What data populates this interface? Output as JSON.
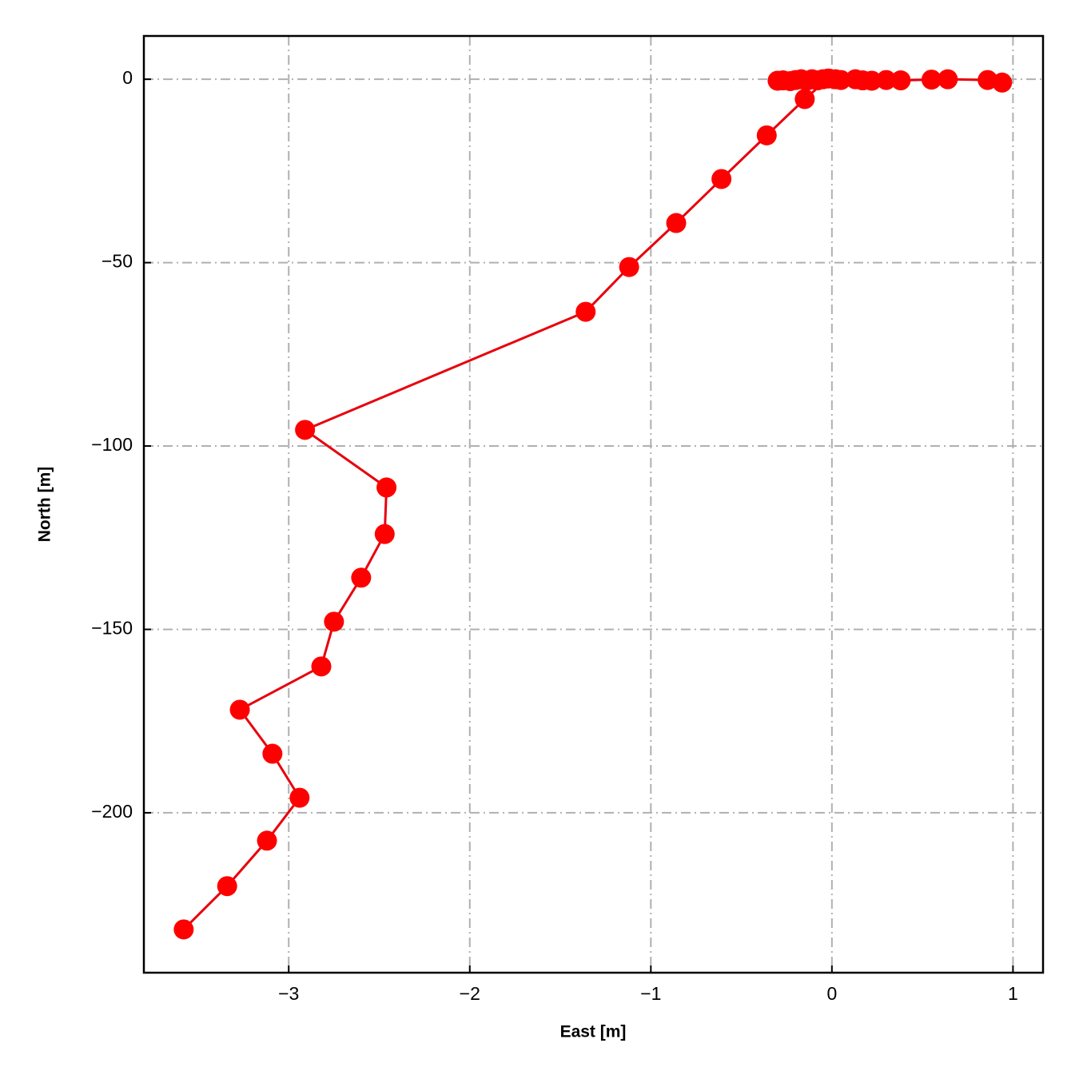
{
  "chart_data": {
    "type": "line",
    "x_label": "East [m]",
    "y_label": "North [m]",
    "x": [
      -3.58,
      -3.34,
      -3.12,
      -2.94,
      -3.09,
      -3.27,
      -2.82,
      -2.75,
      -2.6,
      -2.47,
      -2.46,
      -2.91,
      -1.36,
      -1.12,
      -0.86,
      -0.61,
      -0.36,
      -0.15,
      -0.02,
      -0.05,
      -0.08,
      -0.11,
      -0.14,
      -0.17,
      -0.2,
      -0.23,
      -0.27,
      -0.3,
      0.02,
      0.05,
      0.13,
      0.17,
      0.22,
      0.3,
      0.38,
      0.55,
      0.64,
      0.86,
      0.94
    ],
    "series": [
      {
        "color": "#ff0000",
        "line_color": "#e8000b",
        "values": [
          -231.8,
          -220,
          -207.6,
          -195.9,
          -183.9,
          -171.9,
          -160.1,
          -147.9,
          -135.9,
          -124,
          -111.3,
          -95.6,
          -63.4,
          -51.2,
          -39.2,
          -27.2,
          -15.3,
          -5.4,
          0.2,
          0,
          -0.3,
          0,
          -0.4,
          0,
          -0.2,
          -0.5,
          -0.3,
          -0.4,
          0,
          -0.2,
          0,
          -0.3,
          -0.4,
          -0.2,
          -0.3,
          -0.1,
          0,
          -0.2,
          -0.9
        ]
      }
    ],
    "xlim": [
      -3.8,
      1.166
    ],
    "ylim": [
      -243.6,
      11.8
    ],
    "xticks": [
      {
        "value": -3,
        "label": "−3"
      },
      {
        "value": -2,
        "label": "−2"
      },
      {
        "value": -1,
        "label": "−1"
      },
      0,
      1
    ],
    "yticks": [
      {
        "value": -200,
        "label": "−200"
      },
      {
        "value": -150,
        "label": "−150"
      },
      {
        "value": -100,
        "label": "−100"
      },
      {
        "value": -50,
        "label": "−50"
      },
      0
    ],
    "grid": true
  }
}
